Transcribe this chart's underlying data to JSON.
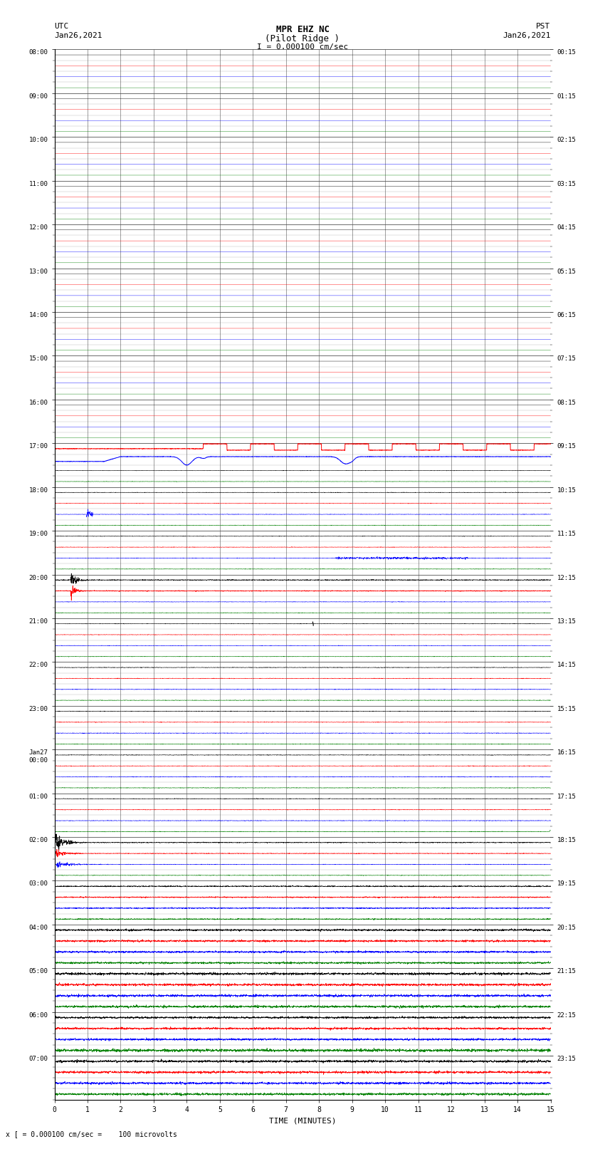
{
  "title_line1": "MPR EHZ NC",
  "title_line2": "(Pilot Ridge )",
  "title_scale": "I = 0.000100 cm/sec",
  "left_label_line1": "UTC",
  "left_label_line2": "Jan26,2021",
  "right_label_line1": "PST",
  "right_label_line2": "Jan26,2021",
  "xlabel": "TIME (MINUTES)",
  "bottom_note": "x [ = 0.000100 cm/sec =    100 microvolts",
  "left_ticks_major": [
    "08:00",
    "09:00",
    "10:00",
    "11:00",
    "12:00",
    "13:00",
    "14:00",
    "15:00",
    "16:00",
    "17:00",
    "18:00",
    "19:00",
    "20:00",
    "21:00",
    "22:00",
    "23:00",
    "Jan27\n00:00",
    "01:00",
    "02:00",
    "03:00",
    "04:00",
    "05:00",
    "06:00",
    "07:00"
  ],
  "right_ticks_major": [
    "00:15",
    "01:15",
    "02:15",
    "03:15",
    "04:15",
    "05:15",
    "06:15",
    "07:15",
    "08:15",
    "09:15",
    "10:15",
    "11:15",
    "12:15",
    "13:15",
    "14:15",
    "15:15",
    "16:15",
    "17:15",
    "18:15",
    "19:15",
    "20:15",
    "21:15",
    "22:15",
    "23:15"
  ],
  "n_rows": 96,
  "bg_color": "#ffffff",
  "grid_color_major": "#555555",
  "grid_color_minor": "#aaaaaa",
  "trace_colors": [
    "#000000",
    "#ff0000",
    "#0000ff",
    "#008000"
  ],
  "x_ticks": [
    0,
    1,
    2,
    3,
    4,
    5,
    6,
    7,
    8,
    9,
    10,
    11,
    12,
    13,
    14,
    15
  ],
  "xlim": [
    0,
    15
  ]
}
